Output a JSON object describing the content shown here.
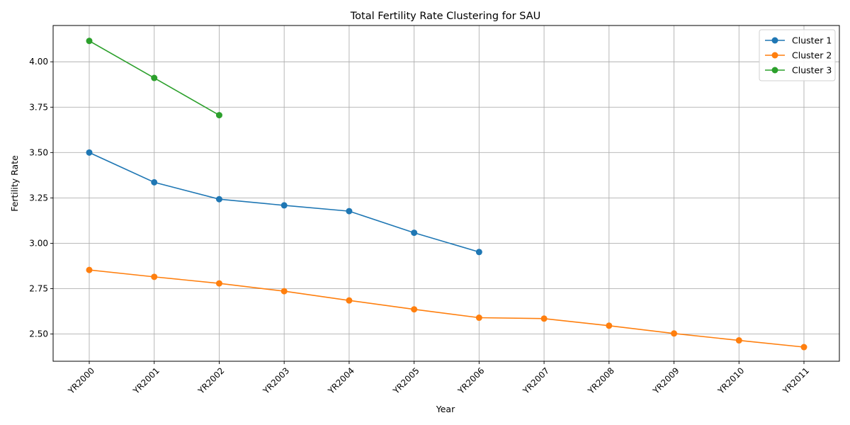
{
  "chart_data": {
    "type": "line",
    "title": "Total Fertility Rate Clustering for SAU",
    "xlabel": "Year",
    "ylabel": "Fertility Rate",
    "categories": [
      "YR2000",
      "YR2001",
      "YR2002",
      "YR2003",
      "YR2004",
      "YR2005",
      "YR2006",
      "YR2007",
      "YR2008",
      "YR2009",
      "YR2010",
      "YR2011"
    ],
    "ylim": [
      2.35,
      4.2
    ],
    "yticks": [
      "2.50",
      "2.75",
      "3.00",
      "3.25",
      "3.50",
      "3.75",
      "4.00"
    ],
    "grid": true,
    "legend_position": "top-right",
    "series": [
      {
        "name": "Cluster 1",
        "color": "#1f77b4",
        "values": [
          3.5,
          3.336,
          3.243,
          3.209,
          3.177,
          3.058,
          2.952,
          null,
          null,
          null,
          null,
          null
        ]
      },
      {
        "name": "Cluster 2",
        "color": "#ff7f0e",
        "values": [
          2.853,
          2.815,
          2.779,
          2.736,
          2.685,
          2.636,
          2.59,
          2.585,
          2.546,
          2.503,
          2.465,
          2.428
        ]
      },
      {
        "name": "Cluster 3",
        "color": "#2ca02c",
        "values": [
          4.115,
          3.911,
          3.706,
          null,
          null,
          null,
          null,
          null,
          null,
          null,
          null,
          null
        ]
      }
    ]
  }
}
